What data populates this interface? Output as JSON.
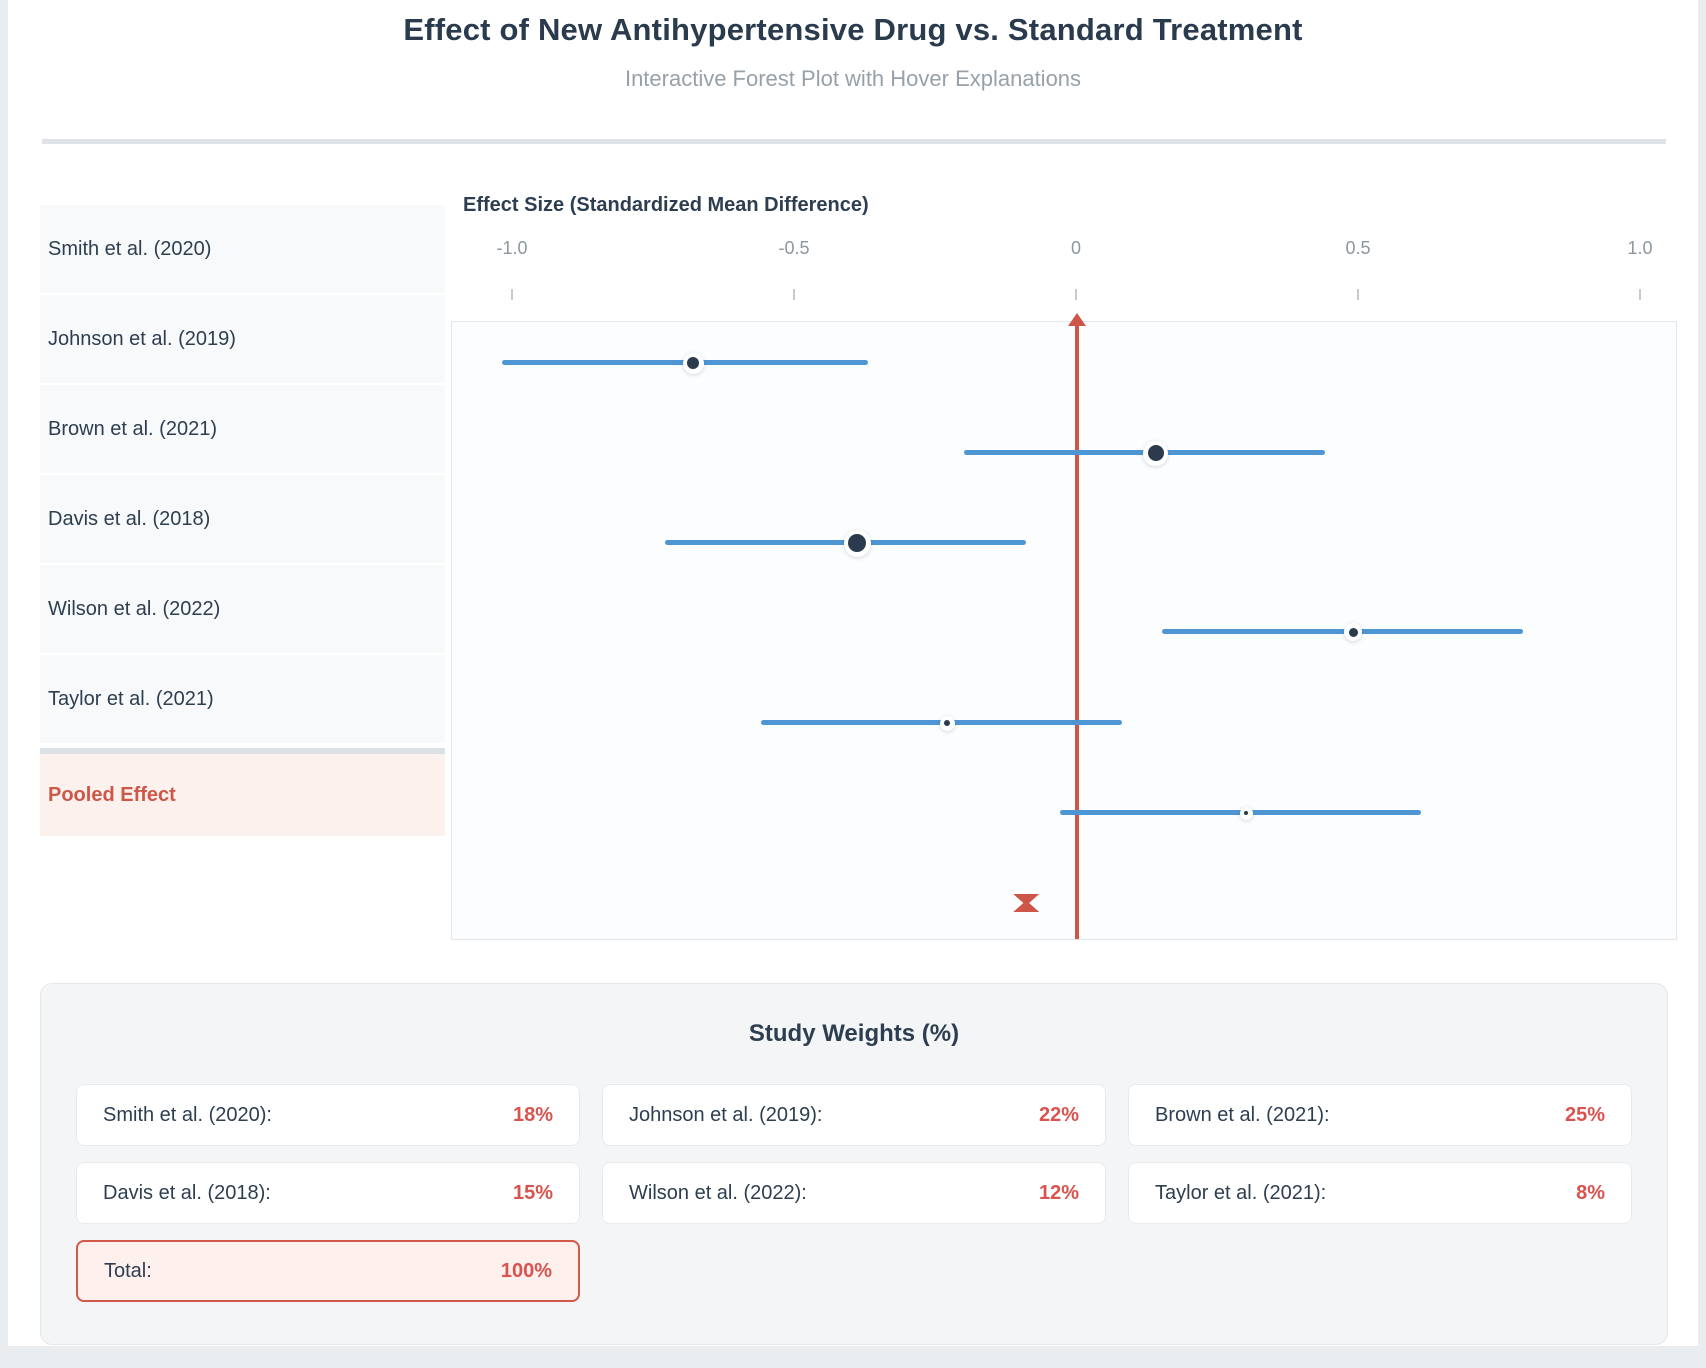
{
  "header": {
    "title": "Effect of New Antihypertensive Drug vs. Standard Treatment",
    "subtitle": "Interactive Forest Plot with Hover Explanations"
  },
  "sidebar": {
    "studies": [
      "Smith et al. (2020)",
      "Johnson et al. (2019)",
      "Brown et al. (2021)",
      "Davis et al. (2018)",
      "Wilson et al. (2022)",
      "Taylor et al. (2021)"
    ],
    "pooled_label": "Pooled Effect"
  },
  "chart_data": {
    "type": "forest",
    "axis_label": "Effect Size (Standardized Mean Difference)",
    "x_ticks": [
      "-1.0",
      "-0.5",
      "0",
      "0.5",
      "1.0"
    ],
    "x_range": [
      -1.1,
      1.06
    ],
    "zero_reference_line": 0,
    "studies": [
      {
        "label": "Smith et al. (2020)",
        "effect": -0.68,
        "ci": [
          -1.02,
          -0.37
        ],
        "weight_pct": 18
      },
      {
        "label": "Johnson et al. (2019)",
        "effect": 0.14,
        "ci": [
          -0.2,
          0.44
        ],
        "weight_pct": 22
      },
      {
        "label": "Brown et al. (2021)",
        "effect": -0.39,
        "ci": [
          -0.73,
          -0.09
        ],
        "weight_pct": 25
      },
      {
        "label": "Davis et al. (2018)",
        "effect": 0.49,
        "ci": [
          0.15,
          0.79
        ],
        "weight_pct": 15
      },
      {
        "label": "Wilson et al. (2022)",
        "effect": -0.23,
        "ci": [
          -0.56,
          0.08
        ],
        "weight_pct": 12
      },
      {
        "label": "Taylor et al. (2021)",
        "effect": 0.3,
        "ci": [
          -0.03,
          0.61
        ],
        "weight_pct": 8
      }
    ],
    "pooled": {
      "label": "Pooled Effect",
      "effect": -0.09
    }
  },
  "weights": {
    "title": "Study Weights (%)",
    "entries": [
      {
        "label": "Smith et al. (2020):",
        "value": "18%"
      },
      {
        "label": "Johnson et al. (2019):",
        "value": "22%"
      },
      {
        "label": "Brown et al. (2021):",
        "value": "25%"
      },
      {
        "label": "Davis et al. (2018):",
        "value": "15%"
      },
      {
        "label": "Wilson et al. (2022):",
        "value": "12%"
      },
      {
        "label": "Taylor et al. (2021):",
        "value": "8%"
      }
    ],
    "total": {
      "label": "Total:",
      "value": "100%"
    }
  },
  "colors": {
    "navy_text": "#2b3b4e",
    "subtitle_gray": "#97a1a9",
    "tick_gray": "#8d979e",
    "ci_blue": "#4e95d4",
    "dot_navy": "#2b3a4d",
    "accent_red": "#cd5649",
    "value_red": "#d9534f",
    "sidebar_bg": "#f8f9fb",
    "pooled_bg": "#fdf1ee",
    "panel_bg": "#f3f5f7",
    "page_bg": "#e9edf0"
  }
}
